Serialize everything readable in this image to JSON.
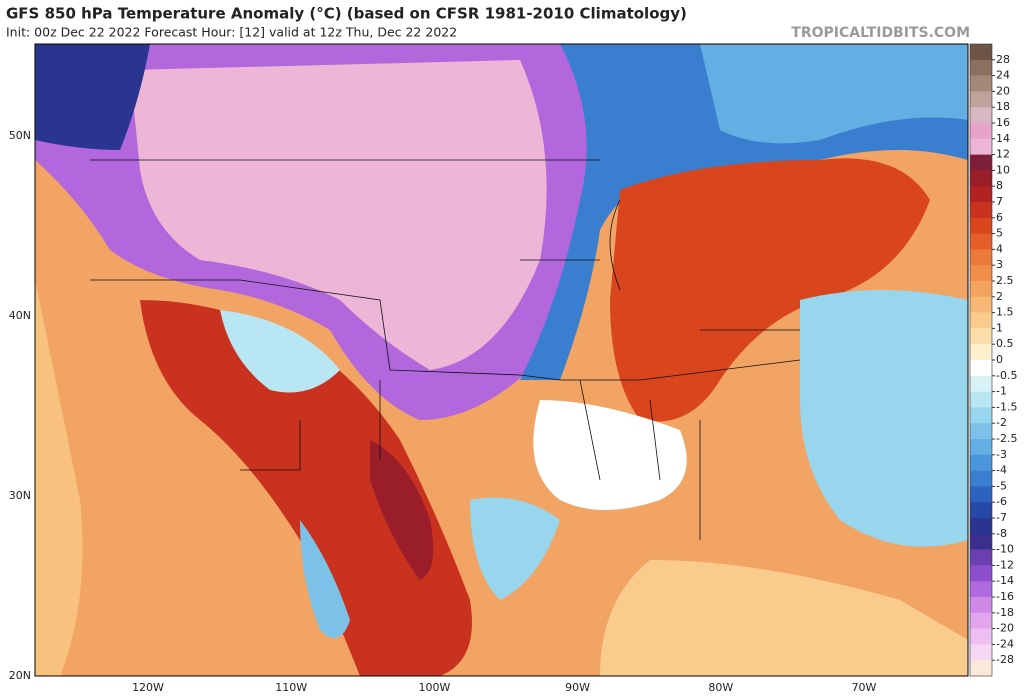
{
  "header": {
    "title": "GFS 850 hPa Temperature Anomaly (°C) (based on CFSR 1981-2010 Climatology)",
    "subtitle": "Init: 00z Dec 22 2022   Forecast Hour: [12]   valid at 12z Thu, Dec 22 2022",
    "watermark": "TROPICALTIDBITS.COM"
  },
  "colorbar": {
    "levels": [
      28,
      24,
      20,
      18,
      16,
      14,
      12,
      10,
      8,
      7,
      6,
      5,
      4,
      3,
      2.5,
      2,
      1.5,
      1,
      0.5,
      0,
      -0.5,
      -1,
      -1.5,
      -2,
      -2.5,
      -3,
      -4,
      -5,
      -6,
      -7,
      -8,
      -10,
      -12,
      -14,
      -16,
      -18,
      -20,
      -24,
      -28
    ],
    "colors": [
      "#6e5444",
      "#8c6f5e",
      "#a58878",
      "#bfa39a",
      "#d9b7c2",
      "#e7a3c9",
      "#eeb6d6",
      "#7e1f3a",
      "#9a1e2a",
      "#b22222",
      "#c8321e",
      "#d9461e",
      "#e55e2a",
      "#ec7a3a",
      "#f08e4a",
      "#f3a35e",
      "#f6b874",
      "#f9cc8e",
      "#fbdfaa",
      "#fdf0cc",
      "#ffffff",
      "#d8f2f6",
      "#b8e6f2",
      "#98d6ee",
      "#7cc2e8",
      "#63aee2",
      "#4a96da",
      "#3a7ecf",
      "#2e62bf",
      "#2848a8",
      "#2a3590",
      "#3b2f8e",
      "#6a3fb0",
      "#8e4fcf",
      "#b06ae0",
      "#cf8ae8",
      "#e2a6ee",
      "#eec0f2",
      "#f6d8f4",
      "#fbe8d8"
    ]
  },
  "lat_labels": [
    "50N",
    "40N",
    "30N",
    "20N"
  ],
  "lon_labels": [
    "120W",
    "110W",
    "100W",
    "90W",
    "80W",
    "70W"
  ]
}
